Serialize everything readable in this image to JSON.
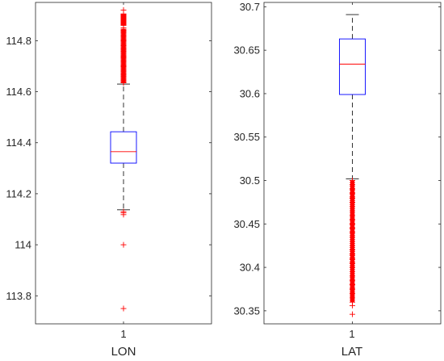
{
  "chart_data": [
    {
      "type": "box",
      "xlabel": "LON",
      "categories": [
        "1"
      ],
      "ylim": [
        113.69,
        114.95
      ],
      "yticks": [
        113.8,
        114,
        114.2,
        114.4,
        114.6,
        114.8
      ],
      "ytick_labels": [
        "113.8",
        "114",
        "114.2",
        "114.4",
        "114.6",
        "114.8"
      ],
      "box": {
        "q1": 114.32,
        "median": 114.365,
        "q3": 114.443,
        "whisker_low": 114.137,
        "whisker_high": 114.63
      },
      "outliers": [
        113.75,
        114.0,
        114.118,
        114.125,
        114.13,
        114.635,
        114.645,
        114.66,
        114.68,
        114.7,
        114.72,
        114.74,
        114.76,
        114.78,
        114.8,
        114.82,
        114.84,
        114.85,
        114.865,
        114.88,
        114.895,
        114.92
      ],
      "colors": {
        "box": "#0000ff",
        "median": "#ff0000",
        "whisker": "#000000",
        "outlier": "#ff0000"
      }
    },
    {
      "type": "box",
      "xlabel": "LAT",
      "categories": [
        "1"
      ],
      "ylim": [
        30.335,
        30.705
      ],
      "yticks": [
        30.35,
        30.4,
        30.45,
        30.5,
        30.55,
        30.6,
        30.65,
        30.7
      ],
      "ytick_labels": [
        "30.35",
        "30.4",
        "30.45",
        "30.5",
        "30.55",
        "30.6",
        "30.65",
        "30.7"
      ],
      "box": {
        "q1": 30.599,
        "median": 30.634,
        "q3": 30.663,
        "whisker_low": 30.502,
        "whisker_high": 30.691
      },
      "outliers": [
        30.346,
        30.356,
        30.36,
        30.365,
        30.37,
        30.375,
        30.38,
        30.385,
        30.39,
        30.395,
        30.4,
        30.405,
        30.41,
        30.415,
        30.42,
        30.425,
        30.43,
        30.435,
        30.44,
        30.445,
        30.45,
        30.455,
        30.46,
        30.465,
        30.47,
        30.475,
        30.48,
        30.485,
        30.49,
        30.495,
        30.5
      ],
      "colors": {
        "box": "#0000ff",
        "median": "#ff0000",
        "whisker": "#000000",
        "outlier": "#ff0000"
      }
    }
  ]
}
